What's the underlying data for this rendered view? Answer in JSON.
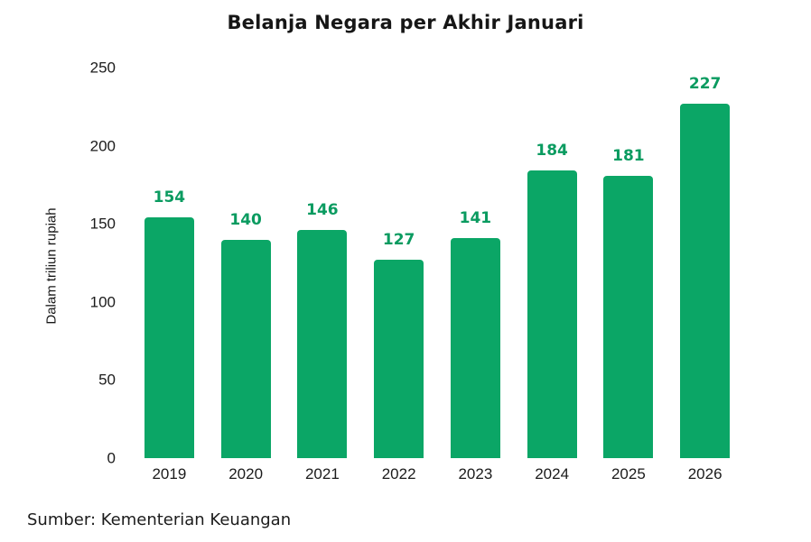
{
  "chart_data": {
    "type": "bar",
    "title": "Belanja Negara per Akhir Januari",
    "ylabel": "Dalam triliun rupiah",
    "xlabel": "",
    "categories": [
      "2019",
      "2020",
      "2021",
      "2022",
      "2023",
      "2024",
      "2025",
      "2026"
    ],
    "values": [
      154,
      140,
      146,
      127,
      141,
      184,
      181,
      227
    ],
    "ylim": [
      0,
      250
    ],
    "yticks": [
      0,
      50,
      100,
      150,
      200,
      250
    ],
    "grid": false,
    "legend": "none",
    "bar_color": "#0ba666",
    "value_label_color": "#0a9b60",
    "source": "Sumber: Kementerian Keuangan"
  }
}
